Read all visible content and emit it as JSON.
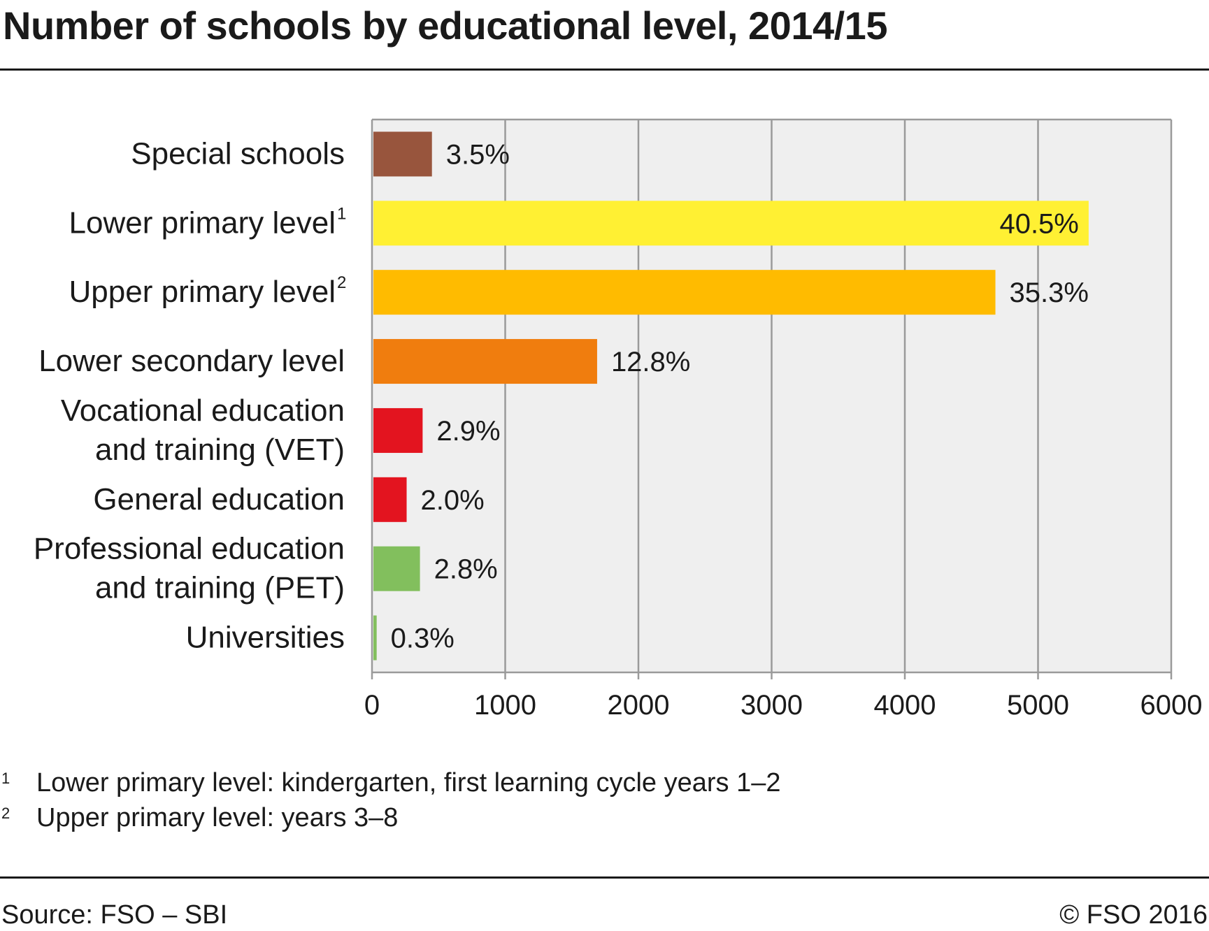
{
  "title": "Number of schools by educational level, 2014/15",
  "footnotes": [
    {
      "marker": "1",
      "text": "Lower primary level: kindergarten, first learning cycle years 1–2"
    },
    {
      "marker": "2",
      "text": "Upper primary level: years 3–8"
    }
  ],
  "source": "Source: FSO – SBI",
  "copyright": "© FSO 2016",
  "chart_data": {
    "type": "bar",
    "orientation": "horizontal",
    "title": "Number of schools by educational level, 2014/15",
    "xlabel": "",
    "ylabel": "",
    "xlim": [
      0,
      6000
    ],
    "x_ticks": [
      "0",
      "1000",
      "2000",
      "3000",
      "4000",
      "5000",
      "6000"
    ],
    "grid": "vertical",
    "plot_background": "#efefef",
    "grid_color": "#9a9a9a",
    "categories": [
      {
        "lines": [
          "Special schools"
        ],
        "sup": ""
      },
      {
        "lines": [
          "Lower primary level"
        ],
        "sup": "1"
      },
      {
        "lines": [
          "Upper primary level"
        ],
        "sup": "2"
      },
      {
        "lines": [
          "Lower secondary level"
        ],
        "sup": ""
      },
      {
        "lines": [
          "Vocational education",
          "and training (VET)"
        ],
        "sup": ""
      },
      {
        "lines": [
          "General education"
        ],
        "sup": ""
      },
      {
        "lines": [
          "Professional education",
          "and training (PET)"
        ],
        "sup": ""
      },
      {
        "lines": [
          "Universities"
        ],
        "sup": ""
      }
    ],
    "values": [
      450,
      5380,
      4680,
      1690,
      380,
      260,
      360,
      35
    ],
    "labels": [
      "3.5%",
      "40.5%",
      "35.3%",
      "12.8%",
      "2.9%",
      "2.0%",
      "2.8%",
      "0.3%"
    ],
    "colors": [
      "#98553d",
      "#fff033",
      "#ffbb00",
      "#f07d0e",
      "#e3141f",
      "#e3141f",
      "#82bf5d",
      "#82bf5d"
    ],
    "label_inside": [
      false,
      true,
      false,
      false,
      false,
      false,
      false,
      false
    ]
  }
}
